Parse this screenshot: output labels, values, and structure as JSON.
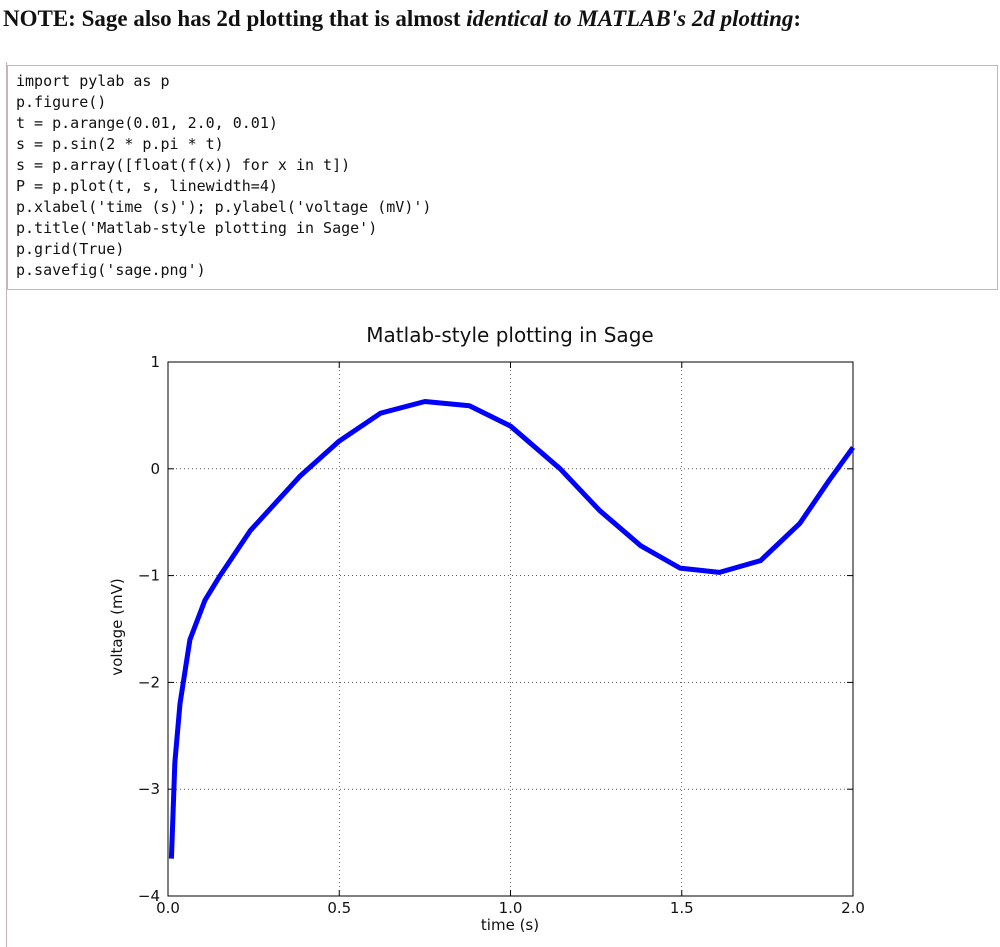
{
  "note": {
    "parts": [
      "NOTE: Sage also has 2d plotting that is almost ",
      "identical to MATLAB's 2d plotting",
      ":"
    ]
  },
  "code": {
    "lines": [
      "import pylab as p",
      "p.figure()",
      "t = p.arange(0.01, 2.0, 0.01)",
      "s = p.sin(2 * p.pi * t)",
      "s = p.array([float(f(x)) for x in t])",
      "P = p.plot(t, s, linewidth=4)",
      "p.xlabel('time (s)'); p.ylabel('voltage (mV)')",
      "p.title('Matlab-style plotting in Sage')",
      "p.grid(True)",
      "p.savefig('sage.png')"
    ]
  },
  "chart_data": {
    "type": "line",
    "title": "Matlab-style plotting in Sage",
    "x_label": "time (s)",
    "y_label": "voltage (mV)",
    "series": [
      {
        "color": "#0000ff",
        "x": [
          0.01,
          0.02,
          0.035,
          0.064,
          0.108,
          0.152,
          0.24,
          0.385,
          0.5,
          0.62,
          0.75,
          0.88,
          1.0,
          1.145,
          1.26,
          1.38,
          1.495,
          1.61,
          1.73,
          1.845,
          1.93,
          2.0
        ],
        "values": [
          -3.65,
          -2.75,
          -2.2,
          -1.6,
          -1.23,
          -1.0,
          -0.58,
          -0.07,
          0.26,
          0.52,
          0.63,
          0.59,
          0.4,
          0.0,
          -0.39,
          -0.72,
          -0.93,
          -0.97,
          -0.86,
          -0.51,
          -0.11,
          0.2
        ]
      }
    ],
    "xlim": [
      0,
      2
    ],
    "ylim": [
      -4,
      1
    ],
    "xticks": [
      {
        "value": 0,
        "label": "0.0"
      },
      0.5,
      {
        "value": 1,
        "label": "1.0"
      },
      1.5,
      {
        "value": 2,
        "label": "2.0"
      }
    ],
    "yticks": [
      {
        "value": -4,
        "label": "−4"
      },
      {
        "value": -3,
        "label": "−3"
      },
      {
        "value": -2,
        "label": "−2"
      },
      {
        "value": -1,
        "label": "−1"
      },
      0,
      1
    ],
    "grid": true
  }
}
